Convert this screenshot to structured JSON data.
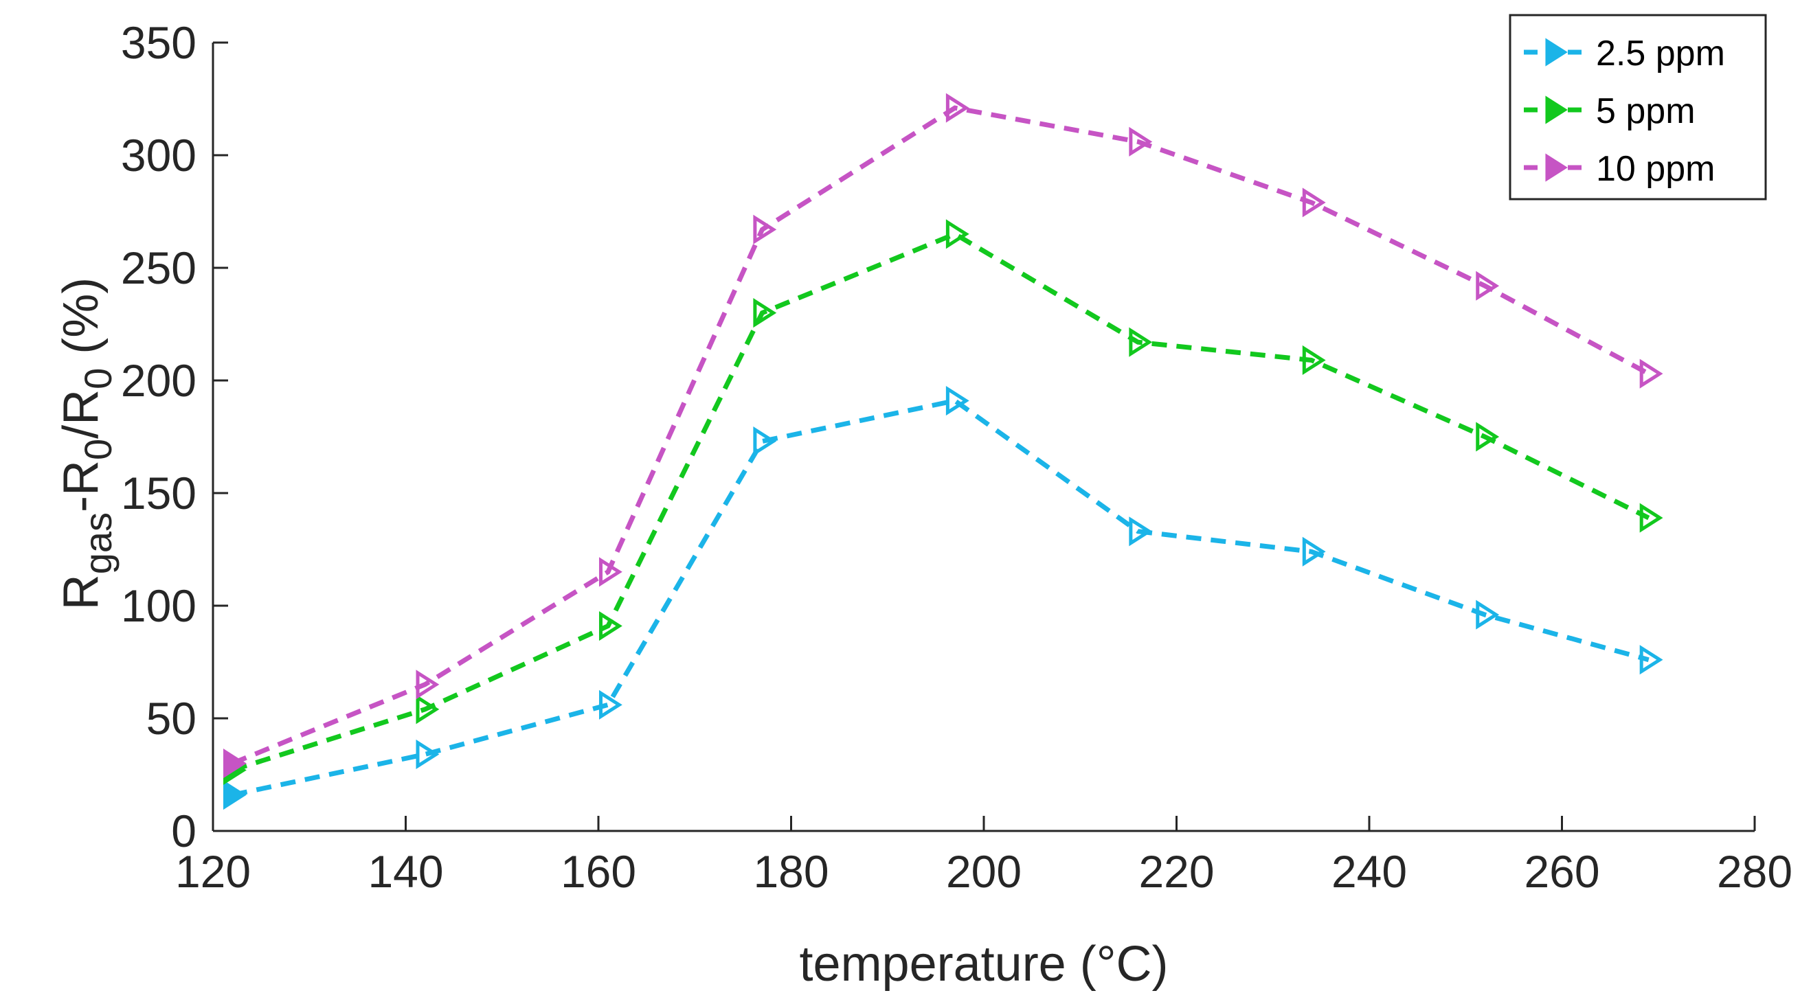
{
  "chart_data": {
    "type": "line",
    "title": "",
    "xlabel": "temperature (°C)",
    "ylabel": {
      "parts": [
        {
          "text": "R",
          "sub": false
        },
        {
          "text": "gas",
          "sub": true
        },
        {
          "text": "-R",
          "sub": false
        },
        {
          "text": "0",
          "sub": true
        },
        {
          "text": "/R",
          "sub": false
        },
        {
          "text": "0",
          "sub": true
        },
        {
          "text": " (%)",
          "sub": false
        }
      ]
    },
    "xlim": [
      120,
      280
    ],
    "ylim": [
      0,
      350
    ],
    "xticks": [
      120,
      140,
      160,
      180,
      200,
      220,
      240,
      260,
      280
    ],
    "yticks": [
      0,
      50,
      100,
      150,
      200,
      250,
      300,
      350
    ],
    "grid": false,
    "legend_position": "top-right",
    "x": [
      122,
      142,
      161,
      177,
      197,
      216,
      234,
      252,
      269
    ],
    "series": [
      {
        "name": "2.5 ppm",
        "color": "#1BB4E8",
        "marker": "triangle-right",
        "values": [
          16,
          34,
          56,
          173,
          191,
          133,
          124,
          96,
          76
        ]
      },
      {
        "name": "5 ppm",
        "color": "#12C81E",
        "marker": "triangle-right",
        "values": [
          27,
          54,
          91,
          230,
          265,
          217,
          209,
          175,
          139
        ]
      },
      {
        "name": "10 ppm",
        "color": "#C654C4",
        "marker": "triangle-right",
        "values": [
          30,
          65,
          115,
          267,
          321,
          306,
          279,
          242,
          203
        ]
      }
    ]
  }
}
